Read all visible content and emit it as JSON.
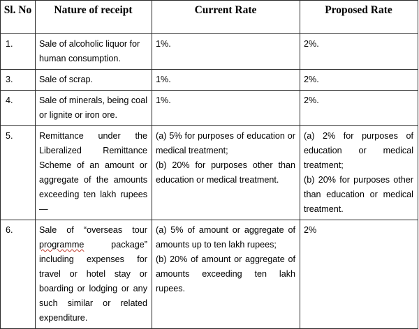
{
  "table": {
    "headers": {
      "sl_no": "Sl. No",
      "nature": "Nature of receipt",
      "current": "Current Rate",
      "proposed": "Proposed Rate"
    },
    "rows": [
      {
        "sl": "1.",
        "nature": "Sale of alcoholic liquor for human consumption.",
        "current": [
          "1%."
        ],
        "proposed": [
          "2%."
        ]
      },
      {
        "sl": "3.",
        "nature": "Sale of scrap.",
        "current": [
          "1%."
        ],
        "proposed": [
          "2%."
        ]
      },
      {
        "sl": "4.",
        "nature": "Sale of minerals, being coal or lignite or iron ore.",
        "current": [
          "1%."
        ],
        "proposed": [
          "2%."
        ]
      },
      {
        "sl": "5.",
        "nature": "Remittance under the Liberalized Remittance Scheme of an amount or aggregate of the amounts exceeding ten lakh rupees—",
        "current": [
          "(a) 5% for purposes of education or medical treatment;",
          "(b) 20% for purposes other than education or medical treatment."
        ],
        "proposed": [
          "(a) 2% for purposes of education or medical treatment;",
          "(b) 20% for purposes other than education or medical treatment."
        ]
      },
      {
        "sl": "6.",
        "nature_parts": [
          "Sale of “overseas tour ",
          "programme",
          " package” including expenses for travel or hotel stay or boarding or lodging or any such similar or related expenditure."
        ],
        "current": [
          "(a) 5% of amount or aggregate of amounts up to ten lakh rupees;",
          "(b) 20% of amount or aggregate of amounts exceeding ten lakh rupees."
        ],
        "proposed": [
          "2%"
        ]
      }
    ]
  },
  "colors": {
    "border": "#2a2a2a",
    "text": "#000000",
    "spellcheck_underline": "#c0392b"
  }
}
